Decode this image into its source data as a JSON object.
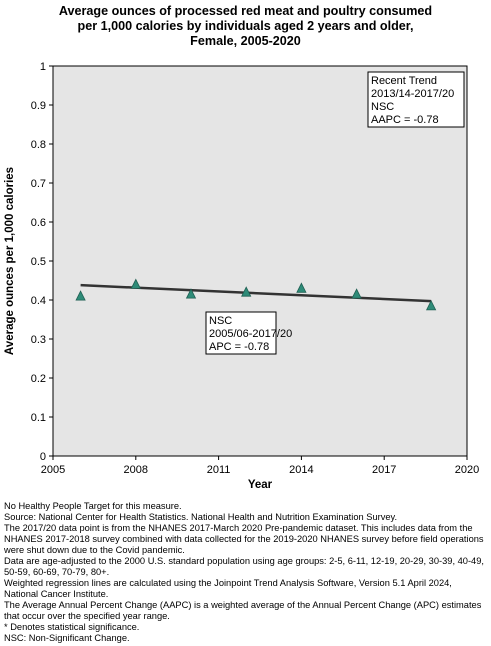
{
  "title_lines": [
    "Average ounces of processed red meat and poultry consumed",
    "per 1,000 calories by individuals aged 2 years and older,",
    "Female,  2005-2020"
  ],
  "chart_data": {
    "type": "scatter",
    "title": "Average ounces of processed red meat and poultry consumed per 1,000 calories by individuals aged 2 years and older, Female,  2005-2020",
    "xlabel": "Year",
    "ylabel": "Average ounces per 1,000 calories",
    "xlim": [
      2005,
      2020
    ],
    "ylim": [
      0,
      1
    ],
    "x_ticks": [
      "2005",
      "2008",
      "2011",
      "2014",
      "2017",
      "2020"
    ],
    "y_ticks": [
      "0",
      "0.1",
      "0.2",
      "0.3",
      "0.4",
      "0.5",
      "0.6",
      "0.7",
      "0.8",
      "0.9",
      "1"
    ],
    "grid": false,
    "series": [
      {
        "marker": "triangle",
        "color": "#2e8b78",
        "x": [
          2006,
          2008,
          2010,
          2012,
          2014,
          2016,
          2018.7
        ],
        "y": [
          0.41,
          0.44,
          0.415,
          0.42,
          0.43,
          0.415,
          0.385
        ]
      }
    ],
    "trend_line": {
      "x": [
        2006,
        2018.7
      ],
      "y": [
        0.438,
        0.397
      ],
      "color": "#333333"
    },
    "annotations": [
      {
        "id": "recent",
        "lines": [
          "Recent Trend",
          "2013/14-2017/20",
          "NSC",
          "AAPC = -0.78"
        ]
      },
      {
        "id": "overall",
        "lines": [
          "NSC",
          "2005/06-2017/20",
          "APC = -0.78"
        ]
      }
    ]
  },
  "notes": [
    "No Healthy People Target for this measure.",
    "Source: National Center for Health Statistics. National Health and Nutrition Examination Survey.",
    "The 2017/20 data point is from the NHANES 2017-March 2020 Pre-pandemic dataset. This includes data from the NHANES 2017-2018 survey combined with data collected for the 2019-2020 NHANES survey before field operations were shut down due to the Covid pandemic.",
    "Data are age-adjusted to the 2000 U.S. standard population using age groups: 2-5, 6-11, 12-19, 20-29, 30-39, 40-49, 50-59, 60-69, 70-79, 80+.",
    "Weighted regression lines are calculated using the Joinpoint Trend Analysis Software, Version 5.1 April 2024, National Cancer Institute.",
    "The Average Annual Percent Change (AAPC) is a weighted average of the Annual Percent Change (APC) estimates that occur over the specified year range.",
    "* Denotes statistical significance.",
    "NSC: Non-Significant Change."
  ]
}
